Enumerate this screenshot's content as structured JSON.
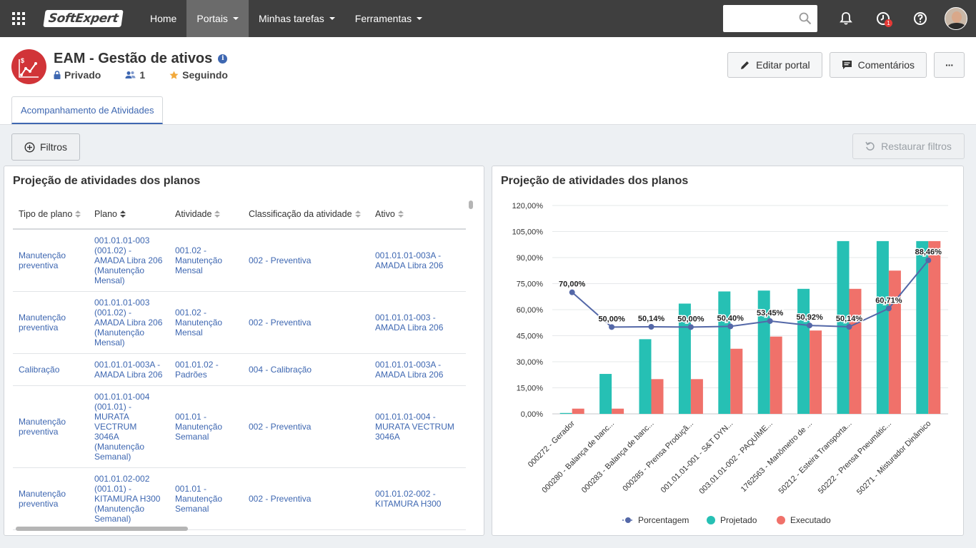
{
  "topnav": {
    "logo": "SoftExpert",
    "items": [
      {
        "label": "Home",
        "dropdown": false
      },
      {
        "label": "Portais",
        "dropdown": true,
        "active": true
      },
      {
        "label": "Minhas tarefas",
        "dropdown": true
      },
      {
        "label": "Ferramentas",
        "dropdown": true
      }
    ],
    "notification_badge": "1",
    "search_placeholder": ""
  },
  "portal": {
    "title": "EAM - Gestão de ativos",
    "privacy": "Privado",
    "members": "1",
    "following": "Seguindo",
    "actions": {
      "edit": "Editar portal",
      "comments": "Comentários",
      "more": "···"
    },
    "tab": "Acompanhamento de Atividades"
  },
  "toolbar": {
    "filters": "Filtros",
    "restore": "Restaurar filtros"
  },
  "table_widget": {
    "title": "Projeção de atividades dos planos",
    "columns": [
      "Tipo de plano",
      "Plano",
      "Atividade",
      "Classificação da atividade",
      "Ativo"
    ],
    "rows": [
      [
        "Manutenção preventiva",
        "001.01.01-003 (001.02) - AMADA Libra 206 (Manutenção Mensal)",
        "001.02 - Manutenção Mensal",
        "002 - Preventiva",
        "001.01.01-003A - AMADA Libra 206"
      ],
      [
        "Manutenção preventiva",
        "001.01.01-003 (001.02) - AMADA Libra 206 (Manutenção Mensal)",
        "001.02 - Manutenção Mensal",
        "002 - Preventiva",
        "001.01.01-003 - AMADA Libra 206"
      ],
      [
        "Calibração",
        "001.01.01-003A - AMADA Libra 206",
        "001.01.02 - Padrões",
        "004 - Calibração",
        "001.01.01-003A - AMADA Libra 206"
      ],
      [
        "Manutenção preventiva",
        "001.01.01-004 (001.01) - MURATA VECTRUM 3046A (Manutenção Semanal)",
        "001.01 - Manutenção Semanal",
        "002 - Preventiva",
        "001.01.01-004 - MURATA VECTRUM 3046A"
      ],
      [
        "Manutenção preventiva",
        "001.01.02-002 (001.01) - KITAMURA H300 (Manutenção Semanal)",
        "001.01 - Manutenção Semanal",
        "002 - Preventiva",
        "001.01.02-002 - KITAMURA H300"
      ]
    ]
  },
  "chart_widget": {
    "title": "Projeção de atividades dos planos"
  },
  "chart_data": {
    "type": "bar",
    "title": "Projeção de atividades dos planos",
    "categories": [
      "000272 - Gerador",
      "000280 - Balança de banc...",
      "000283 - Balança de banc...",
      "000285 - Prensa Produçã...",
      "001.01.01-001 - S&T DYN...",
      "003.01.01-002 - PAQUÍME...",
      "1762563 - Manômetro de ...",
      "50212 - Esteira Transporta...",
      "50222 - Prensa Pneumátic...",
      "50271 - Misturador Dinâmico"
    ],
    "yticks": [
      "0,00%",
      "15,00%",
      "30,00%",
      "45,00%",
      "60,00%",
      "75,00%",
      "90,00%",
      "105,00%",
      "120,00%"
    ],
    "ylim": [
      0,
      120
    ],
    "series": [
      {
        "name": "Projetado",
        "type": "bar",
        "color": "#26c0b4",
        "values": [
          0.5,
          23,
          43,
          63.5,
          70.5,
          71,
          72,
          99.5,
          99.5,
          99.5
        ]
      },
      {
        "name": "Executado",
        "type": "bar",
        "color": "#f0716a",
        "values": [
          3,
          3,
          20,
          20,
          37.5,
          44.5,
          48,
          72,
          82.5,
          99.5
        ]
      },
      {
        "name": "Porcentagem",
        "type": "line",
        "color": "#5468a8",
        "values": [
          70.0,
          50.0,
          50.14,
          50.0,
          50.4,
          53.45,
          50.92,
          50.14,
          60.71,
          88.46
        ],
        "labels": [
          "70,00%",
          "50,00%",
          "50,14%",
          "50,00%",
          "50,40%",
          "53,45%",
          "50,92%",
          "50,14%",
          "60,71%",
          "88,46%"
        ]
      }
    ],
    "legend": [
      "Porcentagem",
      "Projetado",
      "Executado"
    ],
    "legend_position": "bottom",
    "grid": true
  }
}
